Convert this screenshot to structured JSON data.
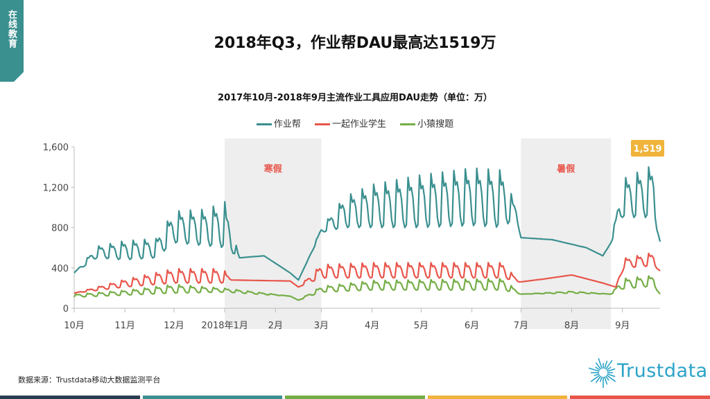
{
  "corner_tab": {
    "text": "在线教育",
    "color": "#3a8f8f"
  },
  "page_title": "2018年Q3，作业帮DAU最高达1519万",
  "chart_title": "2017年10月-2018年9月主流作业工具应用DAU走势（单位：万）",
  "source": "数据来源：Trustdata移动大数据监测平台",
  "logo_text": "Trustdata",
  "colors": {
    "zuoyebang": "#3a8f8f",
    "yiqi": "#e8554a",
    "xiaoyuan": "#74ad45",
    "shade": "#eeeeee",
    "shade_label": "#e8554a",
    "callout": "#f0b43c",
    "footer": [
      "#2a3d50",
      "#3a8f8f",
      "#74ad45",
      "#f0b43c",
      "#e8554a"
    ]
  },
  "chart_data": {
    "type": "line",
    "title": "2017年10月-2018年9月主流作业工具应用DAU走势（单位：万）",
    "ylim": [
      0,
      1600
    ],
    "yticks": [
      "0",
      "400",
      "800",
      "1,200",
      "1,600"
    ],
    "ytick_values": [
      0,
      400,
      800,
      1200,
      1600
    ],
    "grid": false,
    "legend_position": "top",
    "x_range": [
      "2017-10-01",
      "2018-09-24"
    ],
    "xticks": [
      {
        "date": "2017-10-01",
        "label": "10月"
      },
      {
        "date": "2017-11-01",
        "label": "11月"
      },
      {
        "date": "2017-12-01",
        "label": "12月"
      },
      {
        "date": "2018-01-01",
        "label": "2018年1月"
      },
      {
        "date": "2018-02-01",
        "label": "2月"
      },
      {
        "date": "2018-03-01",
        "label": "3月"
      },
      {
        "date": "2018-04-01",
        "label": "4月"
      },
      {
        "date": "2018-05-01",
        "label": "5月"
      },
      {
        "date": "2018-06-01",
        "label": "6月"
      },
      {
        "date": "2018-07-01",
        "label": "7月"
      },
      {
        "date": "2018-08-01",
        "label": "8月"
      },
      {
        "date": "2018-09-01",
        "label": "9月"
      }
    ],
    "shaded_periods": [
      {
        "label": "寒假",
        "start": "2018-01-01",
        "end": "2018-03-01"
      },
      {
        "label": "暑假",
        "start": "2018-07-01",
        "end": "2018-08-25"
      }
    ],
    "callout": {
      "label": "1,519",
      "value": 1519,
      "series": "作业帮"
    },
    "series": [
      {
        "name": "作业帮",
        "keypoints": [
          [
            "2017-10-01",
            350,
            350
          ],
          [
            "2017-10-15",
            500,
            620
          ],
          [
            "2017-11-01",
            480,
            680
          ],
          [
            "2017-11-20",
            500,
            700
          ],
          [
            "2017-12-01",
            650,
            980
          ],
          [
            "2017-12-20",
            620,
            1000
          ],
          [
            "2018-01-01",
            600,
            1080
          ],
          [
            "2018-01-10",
            500,
            500
          ],
          [
            "2018-01-25",
            520,
            520
          ],
          [
            "2018-02-10",
            350,
            350
          ],
          [
            "2018-02-15",
            280,
            280
          ],
          [
            "2018-02-20",
            450,
            450
          ],
          [
            "2018-03-01",
            750,
            800
          ],
          [
            "2018-03-15",
            800,
            1120
          ],
          [
            "2018-04-01",
            800,
            1250
          ],
          [
            "2018-05-01",
            800,
            1350
          ],
          [
            "2018-06-01",
            820,
            1420
          ],
          [
            "2018-06-20",
            800,
            1400
          ],
          [
            "2018-06-28",
            900,
            1000
          ],
          [
            "2018-07-01",
            700,
            700
          ],
          [
            "2018-07-20",
            680,
            680
          ],
          [
            "2018-08-10",
            600,
            600
          ],
          [
            "2018-08-20",
            520,
            520
          ],
          [
            "2018-08-25",
            650,
            650
          ],
          [
            "2018-09-01",
            900,
            1300
          ],
          [
            "2018-09-20",
            900,
            1450
          ],
          [
            "2018-09-24",
            660,
            660
          ]
        ]
      },
      {
        "name": "一起作业学生",
        "keypoints": [
          [
            "2017-10-01",
            150,
            150
          ],
          [
            "2017-11-01",
            210,
            290
          ],
          [
            "2017-12-01",
            250,
            400
          ],
          [
            "2017-12-31",
            250,
            400
          ],
          [
            "2018-01-05",
            280,
            280
          ],
          [
            "2018-02-10",
            270,
            270
          ],
          [
            "2018-02-15",
            210,
            210
          ],
          [
            "2018-03-01",
            300,
            440
          ],
          [
            "2018-04-01",
            300,
            460
          ],
          [
            "2018-06-20",
            300,
            460
          ],
          [
            "2018-06-30",
            260,
            260
          ],
          [
            "2018-07-15",
            290,
            290
          ],
          [
            "2018-08-01",
            330,
            330
          ],
          [
            "2018-08-20",
            250,
            250
          ],
          [
            "2018-08-28",
            210,
            210
          ],
          [
            "2018-09-02",
            400,
            500
          ],
          [
            "2018-09-20",
            420,
            560
          ],
          [
            "2018-09-24",
            370,
            370
          ]
        ]
      },
      {
        "name": "小猿搜题",
        "keypoints": [
          [
            "2017-10-01",
            110,
            140
          ],
          [
            "2017-11-01",
            130,
            180
          ],
          [
            "2017-12-01",
            150,
            240
          ],
          [
            "2018-01-01",
            160,
            200
          ],
          [
            "2018-02-10",
            120,
            120
          ],
          [
            "2018-02-15",
            80,
            80
          ],
          [
            "2018-03-01",
            160,
            220
          ],
          [
            "2018-04-01",
            180,
            280
          ],
          [
            "2018-06-20",
            180,
            300
          ],
          [
            "2018-07-01",
            140,
            140
          ],
          [
            "2018-08-01",
            150,
            170
          ],
          [
            "2018-08-25",
            140,
            140
          ],
          [
            "2018-09-01",
            190,
            300
          ],
          [
            "2018-09-20",
            220,
            330
          ],
          [
            "2018-09-24",
            140,
            140
          ]
        ]
      }
    ]
  }
}
